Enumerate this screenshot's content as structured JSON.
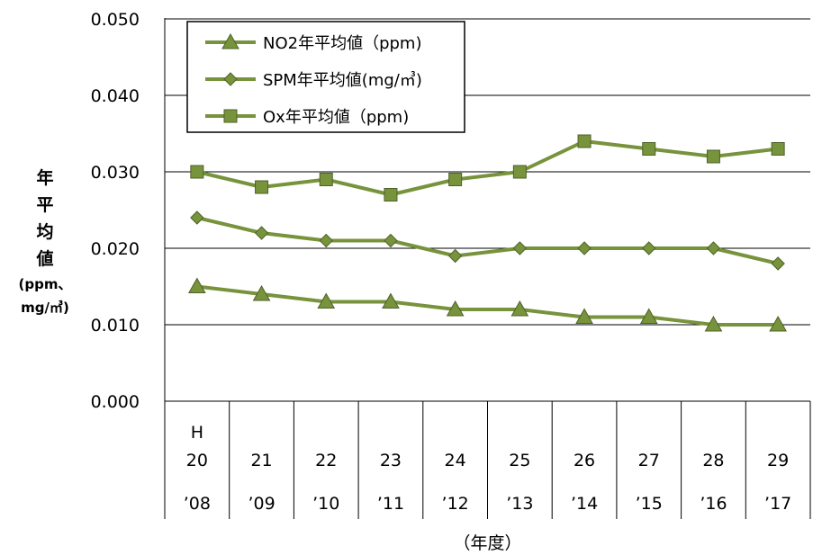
{
  "chart_data": {
    "type": "line",
    "xlabel": "（年度）",
    "ylabel_lines": [
      "年",
      "平",
      "均",
      "値"
    ],
    "ylabel_unit_lines": [
      "(ppm、",
      "mg/㎥)"
    ],
    "ylim": [
      0,
      0.05
    ],
    "yticks": [
      "0.000",
      "0.010",
      "0.020",
      "0.030",
      "0.040",
      "0.050"
    ],
    "categories": [
      {
        "era": "H",
        "year": "20",
        "west": "’08"
      },
      {
        "era": "",
        "year": "21",
        "west": "’09"
      },
      {
        "era": "",
        "year": "22",
        "west": "’10"
      },
      {
        "era": "",
        "year": "23",
        "west": "’11"
      },
      {
        "era": "",
        "year": "24",
        "west": "’12"
      },
      {
        "era": "",
        "year": "25",
        "west": "’13"
      },
      {
        "era": "",
        "year": "26",
        "west": "’14"
      },
      {
        "era": "",
        "year": "27",
        "west": "’15"
      },
      {
        "era": "",
        "year": "28",
        "west": "’16"
      },
      {
        "era": "",
        "year": "29",
        "west": "’17"
      }
    ],
    "series": [
      {
        "name": "NO2年平均値（ppm)",
        "marker": "triangle",
        "values": [
          0.015,
          0.014,
          0.013,
          0.013,
          0.012,
          0.012,
          0.011,
          0.011,
          0.01,
          0.01
        ]
      },
      {
        "name": "SPM年平均値(mg/㎥)",
        "marker": "diamond",
        "values": [
          0.024,
          0.022,
          0.021,
          0.021,
          0.019,
          0.02,
          0.02,
          0.02,
          0.02,
          0.018
        ]
      },
      {
        "name": "Ox年平均値（ppm)",
        "marker": "square",
        "values": [
          0.03,
          0.028,
          0.029,
          0.027,
          0.029,
          0.03,
          0.034,
          0.033,
          0.032,
          0.033
        ]
      }
    ],
    "legend": "top-left",
    "grid": true,
    "colors": {
      "line": "#77933c",
      "marker_stroke": "#4f6228",
      "grid": "#000000"
    }
  }
}
